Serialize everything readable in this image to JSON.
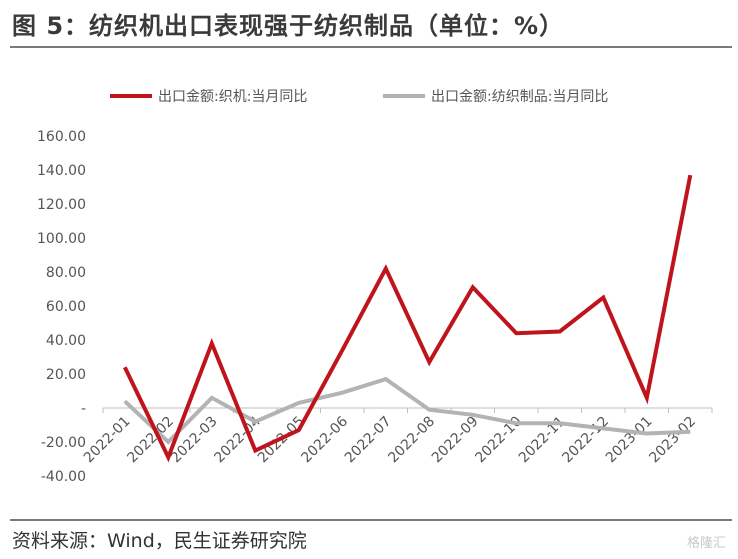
{
  "title": "图 5：纺织机出口表现强于纺织制品（单位：%）",
  "source": "资料来源：Wind，民生证券研究院",
  "watermark": "格隆汇",
  "chart_data": {
    "type": "line",
    "categories": [
      "2022-01",
      "2022-02",
      "2022-03",
      "2022-04",
      "2022-05",
      "2022-06",
      "2022-07",
      "2022-08",
      "2022-09",
      "2022-10",
      "2022-11",
      "2022-12",
      "2023-01",
      "2023-02"
    ],
    "ylim": [
      -40,
      160
    ],
    "yticks": [
      -40,
      -20,
      0,
      20,
      40,
      60,
      80,
      100,
      120,
      140,
      160
    ],
    "ytick_labels": [
      "-40.00",
      "-20.00",
      "-",
      "20.00",
      "40.00",
      "60.00",
      "80.00",
      "100.00",
      "120.00",
      "140.00",
      "160.00"
    ],
    "legend_position": "top",
    "grid": false,
    "series": [
      {
        "name": "出口金额:织机:当月同比",
        "color": "#c0141c",
        "values": [
          24,
          -29,
          38,
          -25,
          -13,
          34,
          82,
          27,
          71,
          44,
          45,
          65,
          6,
          137
        ]
      },
      {
        "name": "出口金额:纺织制品:当月同比",
        "color": "#b3b3b3",
        "values": [
          4,
          -20,
          6,
          -8,
          3,
          9,
          17,
          -1,
          -4,
          -9,
          -9,
          -12,
          -15,
          -14
        ]
      }
    ]
  }
}
